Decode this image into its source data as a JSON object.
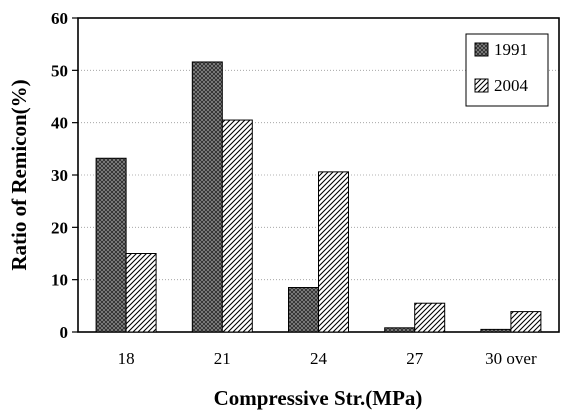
{
  "chart_data": {
    "type": "bar",
    "categories": [
      "18",
      "21",
      "24",
      "27",
      "30 over"
    ],
    "series": [
      {
        "name": "1991",
        "values": [
          33.2,
          51.6,
          8.5,
          0.8,
          0.5
        ],
        "pattern": "crosshatch",
        "color": "#6b6b6b"
      },
      {
        "name": "2004",
        "values": [
          15.0,
          40.5,
          30.6,
          5.5,
          3.9
        ],
        "pattern": "diagonal",
        "color": "#ffffff"
      }
    ],
    "title": "",
    "xlabel": "Compressive Str.(MPa)",
    "ylabel": "Ratio of Remicon(%)",
    "ylim": [
      0,
      60
    ],
    "yticks": [
      "0",
      "10",
      "20",
      "30",
      "40",
      "50",
      "60"
    ],
    "grid": true,
    "legend_position": "top-right"
  }
}
